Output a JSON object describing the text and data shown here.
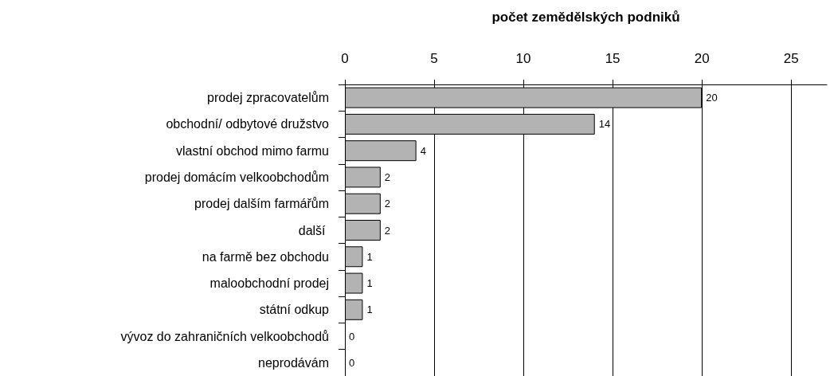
{
  "chart_data": {
    "type": "bar",
    "orientation": "horizontal",
    "xlabel": "počet zemědělských podniků",
    "categories": [
      "prodej zpracovatelům",
      "obchodní/ odbytové družstvo",
      "vlastní obchod mimo farmu",
      "prodej domácím velkoobchodům",
      "prodej dalším farmářům",
      "další ",
      "na farmě bez obchodu",
      "maloobchodní prodej",
      "státní odkup",
      "vývoz do zahraničních velkoobchodů",
      "neprodávám"
    ],
    "values": [
      20,
      14,
      4,
      2,
      2,
      2,
      1,
      1,
      1,
      0,
      0
    ],
    "color": "#b3b3b3",
    "xlim": [
      0,
      27
    ],
    "xticks": [
      0,
      5,
      10,
      15,
      20,
      25
    ],
    "grid": "x",
    "data_labels": true
  }
}
